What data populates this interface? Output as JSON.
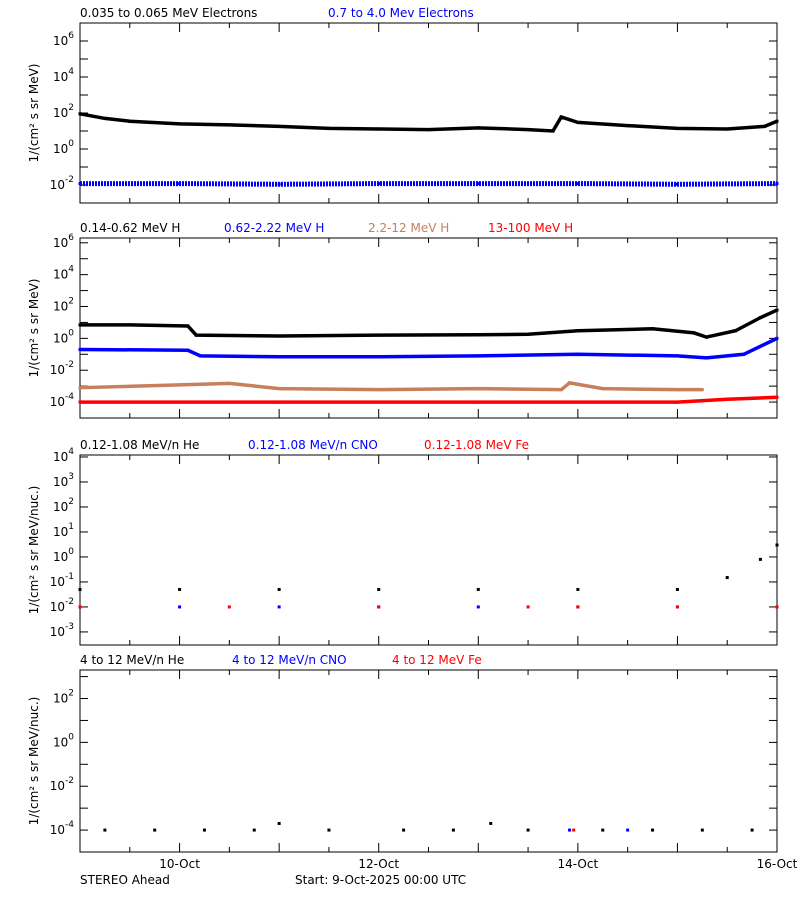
{
  "footer": {
    "left": "STEREO Ahead",
    "start": "Start:  9-Oct-2025 00:00 UTC"
  },
  "chart_data": [
    {
      "type": "scatter",
      "ylabel": "1/(cm² s sr MeV)",
      "yscale": "log",
      "ylim": [
        0.001,
        10000000
      ],
      "yticks": [
        "10^6",
        "10^4",
        "10^2",
        "10^0",
        "10^-2"
      ],
      "xlim": [
        "2025-10-09T00:00",
        "2025-10-16T00:00"
      ],
      "series": [
        {
          "name": "0.035 to 0.065 MeV Electrons",
          "color": "#000000",
          "points": [
            [
              "2025-10-09T00:00",
              90
            ],
            [
              "2025-10-09T06:00",
              50
            ],
            [
              "2025-10-09T12:00",
              35
            ],
            [
              "2025-10-10T00:00",
              25
            ],
            [
              "2025-10-10T12:00",
              22
            ],
            [
              "2025-10-11T00:00",
              18
            ],
            [
              "2025-10-11T12:00",
              14
            ],
            [
              "2025-10-12T00:00",
              13
            ],
            [
              "2025-10-12T12:00",
              12
            ],
            [
              "2025-10-13T00:00",
              15
            ],
            [
              "2025-10-13T12:00",
              12
            ],
            [
              "2025-10-13T18:00",
              10
            ],
            [
              "2025-10-13T20:00",
              60
            ],
            [
              "2025-10-14T00:00",
              30
            ],
            [
              "2025-10-14T12:00",
              20
            ],
            [
              "2025-10-15T00:00",
              14
            ],
            [
              "2025-10-15T12:00",
              13
            ],
            [
              "2025-10-15T21:00",
              18
            ],
            [
              "2025-10-16T00:00",
              35
            ]
          ]
        },
        {
          "name": "0.7 to 4.0 Mev Electrons",
          "color": "#0000ff",
          "points": [
            [
              "2025-10-09T00:00",
              0.012
            ],
            [
              "2025-10-10T00:00",
              0.012
            ],
            [
              "2025-10-11T00:00",
              0.011
            ],
            [
              "2025-10-12T00:00",
              0.012
            ],
            [
              "2025-10-13T00:00",
              0.012
            ],
            [
              "2025-10-14T00:00",
              0.012
            ],
            [
              "2025-10-15T00:00",
              0.011
            ],
            [
              "2025-10-16T00:00",
              0.012
            ]
          ]
        }
      ]
    },
    {
      "type": "scatter",
      "ylabel": "1/(cm² s sr MeV)",
      "yscale": "log",
      "ylim": [
        1e-05,
        2000000
      ],
      "yticks": [
        "10^6",
        "10^4",
        "10^2",
        "10^0",
        "10^-2",
        "10^-4"
      ],
      "xlim": [
        "2025-10-09T00:00",
        "2025-10-16T00:00"
      ],
      "series": [
        {
          "name": "0.14-0.62 MeV H",
          "color": "#000000",
          "points": [
            [
              "2025-10-09T00:00",
              7
            ],
            [
              "2025-10-09T12:00",
              7
            ],
            [
              "2025-10-10T02:00",
              6
            ],
            [
              "2025-10-10T04:00",
              1.6
            ],
            [
              "2025-10-11T00:00",
              1.4
            ],
            [
              "2025-10-12T00:00",
              1.6
            ],
            [
              "2025-10-13T00:00",
              1.7
            ],
            [
              "2025-10-13T12:00",
              1.8
            ],
            [
              "2025-10-14T00:00",
              3
            ],
            [
              "2025-10-14T18:00",
              4
            ],
            [
              "2025-10-15T04:00",
              2.2
            ],
            [
              "2025-10-15T07:00",
              1.2
            ],
            [
              "2025-10-15T14:00",
              3
            ],
            [
              "2025-10-15T20:00",
              20
            ],
            [
              "2025-10-16T00:00",
              60
            ]
          ]
        },
        {
          "name": "0.62-2.22 MeV H",
          "color": "#0000ff",
          "points": [
            [
              "2025-10-09T00:00",
              0.2
            ],
            [
              "2025-10-10T02:00",
              0.18
            ],
            [
              "2025-10-10T05:00",
              0.08
            ],
            [
              "2025-10-11T00:00",
              0.07
            ],
            [
              "2025-10-12T00:00",
              0.07
            ],
            [
              "2025-10-13T00:00",
              0.08
            ],
            [
              "2025-10-14T00:00",
              0.1
            ],
            [
              "2025-10-15T00:00",
              0.08
            ],
            [
              "2025-10-15T07:00",
              0.06
            ],
            [
              "2025-10-15T16:00",
              0.1
            ],
            [
              "2025-10-16T00:00",
              1
            ]
          ]
        },
        {
          "name": "2.2-12 MeV H",
          "color": "#c87f5c",
          "points": [
            [
              "2025-10-09T00:00",
              0.0008
            ],
            [
              "2025-10-10T00:00",
              0.0012
            ],
            [
              "2025-10-10T12:00",
              0.0015
            ],
            [
              "2025-10-11T00:00",
              0.0007
            ],
            [
              "2025-10-12T00:00",
              0.0006
            ],
            [
              "2025-10-13T00:00",
              0.0007
            ],
            [
              "2025-10-13T20:00",
              0.0006
            ],
            [
              "2025-10-13T22:00",
              0.0016
            ],
            [
              "2025-10-14T06:00",
              0.0007
            ],
            [
              "2025-10-15T00:00",
              0.0006
            ],
            [
              "2025-10-15T06:00",
              0.0006
            ]
          ]
        },
        {
          "name": "13-100 MeV H",
          "color": "#ff0000",
          "points": [
            [
              "2025-10-09T00:00",
              0.0001
            ],
            [
              "2025-10-11T00:00",
              0.0001
            ],
            [
              "2025-10-13T00:00",
              0.0001
            ],
            [
              "2025-10-15T00:00",
              0.0001
            ],
            [
              "2025-10-15T12:00",
              0.00015
            ],
            [
              "2025-10-16T00:00",
              0.0002
            ]
          ]
        }
      ]
    },
    {
      "type": "scatter",
      "ylabel": "1/(cm² s sr MeV/nuc.)",
      "yscale": "log",
      "ylim": [
        0.0003,
        12000
      ],
      "yticks": [
        "10^4",
        "10^3",
        "10^2",
        "10^1",
        "10^0",
        "10^-1",
        "10^-2",
        "10^-3"
      ],
      "xlim": [
        "2025-10-09T00:00",
        "2025-10-16T00:00"
      ],
      "series": [
        {
          "name": "0.12-1.08 MeV/n He",
          "color": "#000000",
          "points": [
            [
              "2025-10-09T00:00",
              0.05
            ],
            [
              "2025-10-10T00:00",
              0.05
            ],
            [
              "2025-10-11T00:00",
              0.05
            ],
            [
              "2025-10-12T00:00",
              0.05
            ],
            [
              "2025-10-13T00:00",
              0.05
            ],
            [
              "2025-10-14T00:00",
              0.05
            ],
            [
              "2025-10-15T00:00",
              0.05
            ],
            [
              "2025-10-15T12:00",
              0.15
            ],
            [
              "2025-10-15T20:00",
              0.8
            ],
            [
              "2025-10-16T00:00",
              3
            ]
          ]
        },
        {
          "name": "0.12-1.08 MeV/n CNO",
          "color": "#0000ff",
          "points": [
            [
              "2025-10-09T00:00",
              0.01
            ],
            [
              "2025-10-10T00:00",
              0.01
            ],
            [
              "2025-10-11T00:00",
              0.01
            ],
            [
              "2025-10-12T00:00",
              0.01
            ],
            [
              "2025-10-13T00:00",
              0.01
            ],
            [
              "2025-10-14T00:00",
              0.01
            ],
            [
              "2025-10-15T00:00",
              0.01
            ],
            [
              "2025-10-16T00:00",
              0.01
            ]
          ]
        },
        {
          "name": "0.12-1.08 MeV Fe",
          "color": "#ff0000",
          "points": [
            [
              "2025-10-09T00:00",
              0.01
            ],
            [
              "2025-10-10T12:00",
              0.01
            ],
            [
              "2025-10-12T00:00",
              0.01
            ],
            [
              "2025-10-13T12:00",
              0.01
            ],
            [
              "2025-10-14T00:00",
              0.01
            ],
            [
              "2025-10-15T00:00",
              0.01
            ],
            [
              "2025-10-16T00:00",
              0.01
            ]
          ]
        }
      ]
    },
    {
      "type": "scatter",
      "ylabel": "1/(cm² s sr MeV/nuc.)",
      "yscale": "log",
      "ylim": [
        1e-05,
        2000
      ],
      "yticks": [
        "10^2",
        "10^0",
        "10^-2",
        "10^-4"
      ],
      "xlim": [
        "2025-10-09T00:00",
        "2025-10-16T00:00"
      ],
      "xticks": [
        "10-Oct",
        "12-Oct",
        "14-Oct",
        "16-Oct"
      ],
      "series": [
        {
          "name": "4 to 12 MeV/n He",
          "color": "#000000",
          "points": [
            [
              "2025-10-09T06:00",
              0.0001
            ],
            [
              "2025-10-09T18:00",
              0.0001
            ],
            [
              "2025-10-10T06:00",
              0.0001
            ],
            [
              "2025-10-10T18:00",
              0.0001
            ],
            [
              "2025-10-11T00:00",
              0.0002
            ],
            [
              "2025-10-11T12:00",
              0.0001
            ],
            [
              "2025-10-12T06:00",
              0.0001
            ],
            [
              "2025-10-12T18:00",
              0.0001
            ],
            [
              "2025-10-13T03:00",
              0.0002
            ],
            [
              "2025-10-13T12:00",
              0.0001
            ],
            [
              "2025-10-14T06:00",
              0.0001
            ],
            [
              "2025-10-14T18:00",
              0.0001
            ],
            [
              "2025-10-15T06:00",
              0.0001
            ],
            [
              "2025-10-15T18:00",
              0.0001
            ]
          ]
        },
        {
          "name": "4 to 12 MeV/n CNO",
          "color": "#0000ff",
          "points": [
            [
              "2025-10-13T22:00",
              0.0001
            ],
            [
              "2025-10-14T12:00",
              0.0001
            ]
          ]
        },
        {
          "name": "4 to 12 MeV Fe",
          "color": "#ff0000",
          "points": [
            [
              "2025-10-13T23:00",
              0.0001
            ]
          ]
        }
      ]
    }
  ]
}
